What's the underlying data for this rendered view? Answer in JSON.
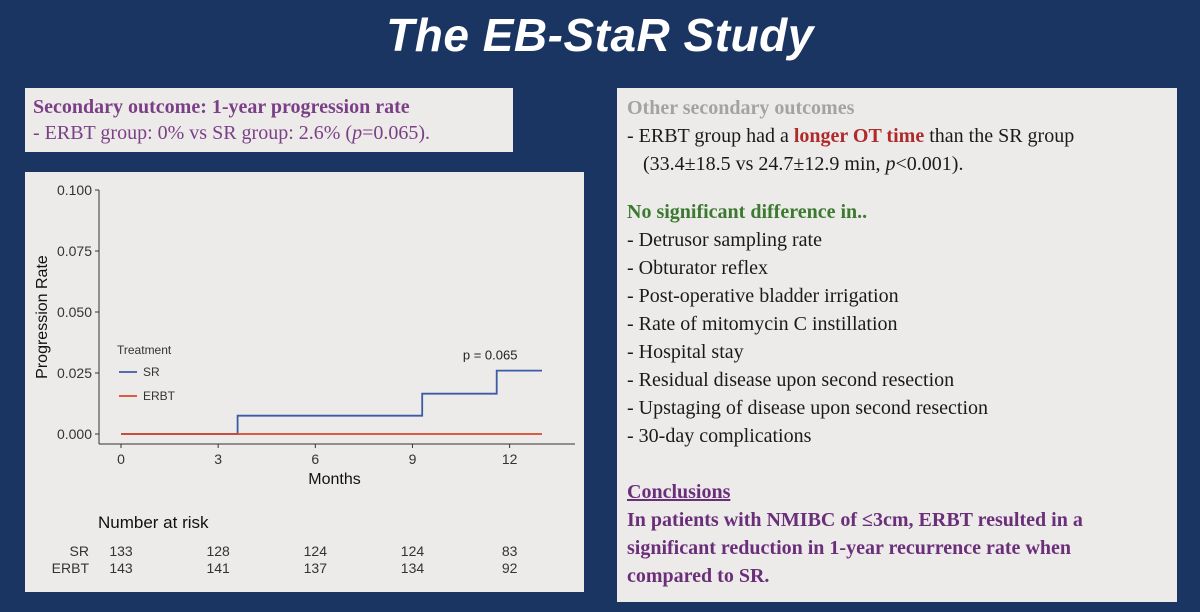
{
  "slide": {
    "title": "The EB-StaR Study"
  },
  "secondary_box": {
    "heading": "Secondary outcome: 1-year progression rate",
    "line_prefix": "- ERBT group: 0% vs SR group: 2.6% (",
    "p_italic": "p",
    "line_suffix": "=0.065)."
  },
  "right_box": {
    "other_heading": "Other secondary outcomes",
    "ot_prefix": "- ERBT group had a ",
    "ot_highlight": "longer OT time",
    "ot_suffix": " than the SR group",
    "ot_stats_prefix": "(33.4±18.5 vs 24.7±12.9 min, ",
    "ot_p": "p",
    "ot_stats_suffix": "<0.001).",
    "nsd_heading": "No significant difference in..",
    "nsd_items": [
      "- Detrusor sampling rate",
      "- Obturator reflex",
      "- Post-operative bladder irrigation",
      "- Rate of mitomycin C instillation",
      "- Hospital stay",
      "- Residual disease upon second resection",
      "- Upstaging of disease upon second resection",
      "- 30-day complications"
    ],
    "conclusions_heading": "Conclusions",
    "conclusions_text": [
      "In patients with NMIBC of ≤3cm, ERBT resulted in a",
      "significant reduction in 1-year recurrence rate when",
      "compared to SR."
    ]
  },
  "chart_data": {
    "type": "line",
    "step": true,
    "xlabel": "Months",
    "ylabel": "Progression Rate",
    "xlim": [
      0,
      13
    ],
    "ylim": [
      0,
      0.1
    ],
    "x_ticks": [
      0,
      3,
      6,
      9,
      12
    ],
    "x_tick_labels": [
      "0",
      "3",
      "6",
      "9",
      "12"
    ],
    "y_ticks": [
      0,
      0.025,
      0.05,
      0.075,
      0.1
    ],
    "y_tick_labels": [
      "0.000",
      "0.025",
      "0.050",
      "0.075",
      "0.100"
    ],
    "legend_title": "Treatment",
    "legend_position": "left",
    "annotation": "p = 0.065",
    "annotation_pos": [
      11.4,
      0.0305
    ],
    "series": [
      {
        "name": "SR",
        "color": "#3b5ba5",
        "points": [
          [
            0,
            0
          ],
          [
            3.6,
            0
          ],
          [
            3.6,
            0.0075
          ],
          [
            9.3,
            0.0075
          ],
          [
            9.3,
            0.0165
          ],
          [
            11.6,
            0.0165
          ],
          [
            11.6,
            0.026
          ],
          [
            13,
            0.026
          ]
        ]
      },
      {
        "name": "ERBT",
        "color": "#d9472b",
        "points": [
          [
            0,
            0
          ],
          [
            13,
            0
          ]
        ]
      }
    ],
    "risk_table": {
      "title": "Number at risk",
      "times": [
        0,
        3,
        6,
        9,
        12
      ],
      "rows": [
        {
          "label": "SR",
          "values": [
            "133",
            "128",
            "124",
            "124",
            "83"
          ]
        },
        {
          "label": "ERBT",
          "values": [
            "143",
            "141",
            "137",
            "134",
            "92"
          ]
        }
      ]
    }
  }
}
